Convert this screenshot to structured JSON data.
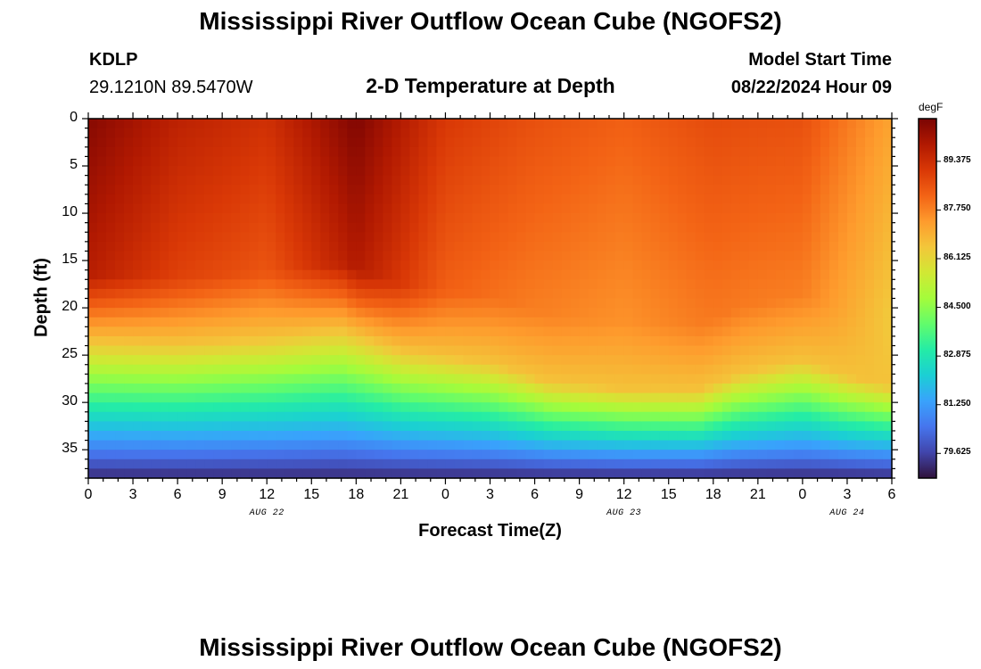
{
  "header": {
    "title_top": "Mississippi River Outflow Ocean Cube (NGOFS2)",
    "title_bottom": "Mississippi River Outflow Ocean Cube (NGOFS2)",
    "station_id": "KDLP",
    "station_coords": "29.1210N  89.5470W",
    "plot_title": "2-D Temperature at Depth",
    "model_start_label": "Model Start Time",
    "model_start_value": "08/22/2024 Hour 09"
  },
  "chart_data": {
    "type": "heatmap",
    "title": "2-D Temperature at Depth",
    "xlabel": "Forecast Time(Z)",
    "ylabel": "Depth (ft)",
    "x_ticks": [
      "0",
      "3",
      "6",
      "9",
      "12",
      "15",
      "18",
      "21",
      "0",
      "3",
      "6",
      "9",
      "12",
      "15",
      "18",
      "21",
      "0",
      "3",
      "6"
    ],
    "x_range_hours": [
      0,
      54
    ],
    "date_labels": [
      {
        "text": "AUG 22",
        "hour": 12
      },
      {
        "text": "AUG 23",
        "hour": 36
      },
      {
        "text": "AUG 24",
        "hour": 51
      }
    ],
    "y_ticks": [
      "0",
      "5",
      "10",
      "15",
      "20",
      "25",
      "30",
      "35"
    ],
    "y_range_ft": [
      0,
      38
    ],
    "colorbar": {
      "units": "degF",
      "min": 78.8,
      "max": 90.8,
      "tick_labels": [
        "89.375",
        "87.750",
        "86.125",
        "84.500",
        "82.875",
        "81.250",
        "79.625"
      ],
      "tick_values": [
        89.375,
        87.75,
        86.125,
        84.5,
        82.875,
        81.25,
        79.625
      ],
      "colors": [
        "#30123b",
        "#4145ab",
        "#4675ed",
        "#39a2fc",
        "#1bcfd4",
        "#24eca6",
        "#61fc6c",
        "#a4fc3b",
        "#d1e834",
        "#f3c63a",
        "#fe9b2d",
        "#f36315",
        "#d93806",
        "#b11901",
        "#7a0403"
      ]
    },
    "thermocline_depth_ft": [
      {
        "hour": 0,
        "depth": 23.5
      },
      {
        "hour": 6,
        "depth": 23.8
      },
      {
        "hour": 12,
        "depth": 23.2
      },
      {
        "hour": 17,
        "depth": 22.3
      },
      {
        "hour": 21,
        "depth": 24.5
      },
      {
        "hour": 27,
        "depth": 25.8
      },
      {
        "hour": 31,
        "depth": 27.8
      },
      {
        "hour": 36,
        "depth": 28.6
      },
      {
        "hour": 41,
        "depth": 28.7
      },
      {
        "hour": 44,
        "depth": 26.8
      },
      {
        "hour": 48,
        "depth": 25.5
      },
      {
        "hour": 51,
        "depth": 27.2
      },
      {
        "hour": 54,
        "depth": 28.2
      }
    ],
    "surface_temp_degF": [
      {
        "hour": 0,
        "temp": 90.6
      },
      {
        "hour": 6,
        "temp": 89.7
      },
      {
        "hour": 12,
        "temp": 89.3
      },
      {
        "hour": 18,
        "temp": 90.7
      },
      {
        "hour": 24,
        "temp": 89.1
      },
      {
        "hour": 30,
        "temp": 88.6
      },
      {
        "hour": 36,
        "temp": 88.3
      },
      {
        "hour": 42,
        "temp": 88.7
      },
      {
        "hour": 48,
        "temp": 88.6
      },
      {
        "hour": 54,
        "temp": 87.2
      }
    ],
    "bottom_temp_degF": 79.2
  }
}
